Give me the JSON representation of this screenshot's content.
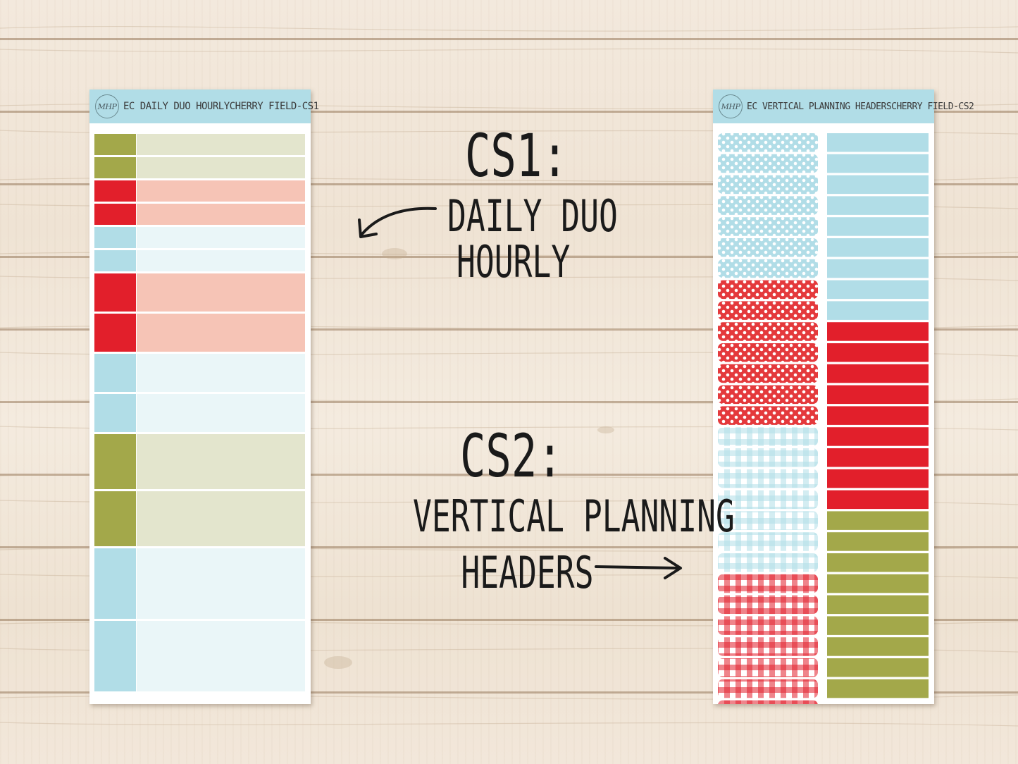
{
  "colors": {
    "olive": "#a3a84a",
    "olive_light": "#e3e5cd",
    "red": "#e21f2b",
    "salmon": "#f6c4b6",
    "blue": "#b1dde7",
    "blue_light": "#eaf6f8",
    "header": "#b1dde7"
  },
  "logo": {
    "text": "MHP",
    "icon": "wreath-logo-icon"
  },
  "cs1_sheet": {
    "title": "EC DAILY DUO HOURLY",
    "code": "CHERRY FIELD-CS1",
    "rows": [
      {
        "color": "olive"
      },
      {
        "color": "olive"
      },
      {
        "color": "red"
      },
      {
        "color": "red"
      },
      {
        "color": "blue"
      },
      {
        "color": "blue"
      },
      {
        "color": "red"
      },
      {
        "color": "red"
      },
      {
        "color": "blue"
      },
      {
        "color": "blue"
      },
      {
        "color": "olive"
      },
      {
        "color": "olive"
      },
      {
        "color": "blue"
      },
      {
        "color": "blue"
      }
    ]
  },
  "cs2_sheet": {
    "title": "EC VERTICAL PLANNING HEADERS",
    "code": "CHERRY FIELD-CS2",
    "left_patterns": [
      "blue-polka-dot",
      "red-polka-dot",
      "blue-gingham",
      "red-gingham"
    ],
    "right_colors": [
      "blue",
      "red",
      "olive"
    ]
  },
  "annotations": {
    "cs1_heading": "CS1:",
    "cs1_line1": "DAILY DUO",
    "cs1_line2": "HOURLY",
    "cs2_heading": "CS2:",
    "cs2_line1": "VERTICAL PLANNING",
    "cs2_line2": "HEADERS"
  }
}
